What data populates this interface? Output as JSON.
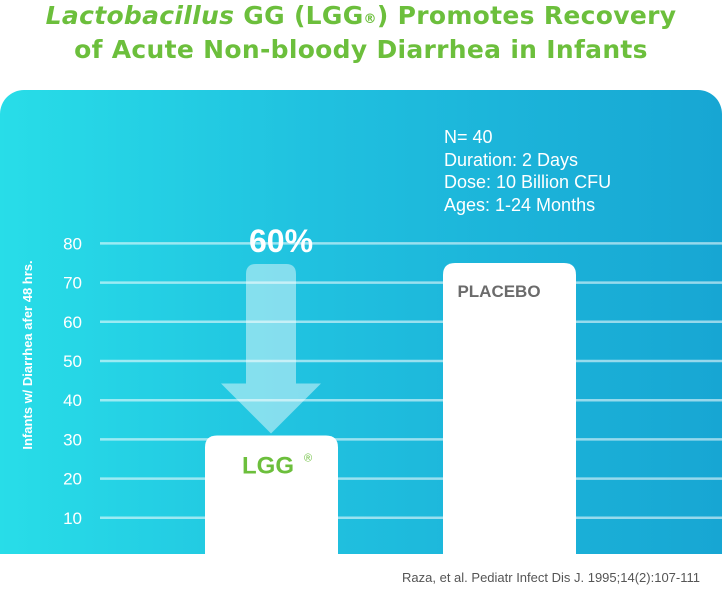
{
  "title": {
    "line1_italic": "Lactobacillus",
    "line1_rest": " GG (LGG",
    "line1_mark": "®",
    "line1_end": ") Promotes Recovery",
    "line2": "of Acute Non-bloody Diarrhea in Infants"
  },
  "info_lines": [
    "N= 40",
    "Duration: 2 Days",
    "Dose: 10 Billion CFU",
    "Ages: 1-24 Months"
  ],
  "arrow_label": "60%",
  "citation": "Raza, et al. Pediatr Infect Dis J. 1995;14(2):107-111",
  "colors": {
    "title": "#6cbf3c",
    "lgg_label": "#6cbf3c",
    "placebo_label": "#6b6b6b",
    "panel_gradient": [
      "#28dde8",
      "#17a6d3"
    ]
  },
  "chart_data": {
    "type": "bar",
    "categories": [
      "LGG",
      "PLACEBO"
    ],
    "category_marks": [
      "®",
      ""
    ],
    "values": [
      31,
      75
    ],
    "ylabel": "Infants w/ Diarrhea afer 48 hrs.",
    "yticks": [
      10,
      20,
      30,
      40,
      50,
      60,
      70,
      80
    ],
    "ylim": [
      0,
      80
    ],
    "grid": true,
    "annotation": {
      "text": "60%",
      "type": "down-arrow",
      "from": 75,
      "to": 31
    }
  }
}
